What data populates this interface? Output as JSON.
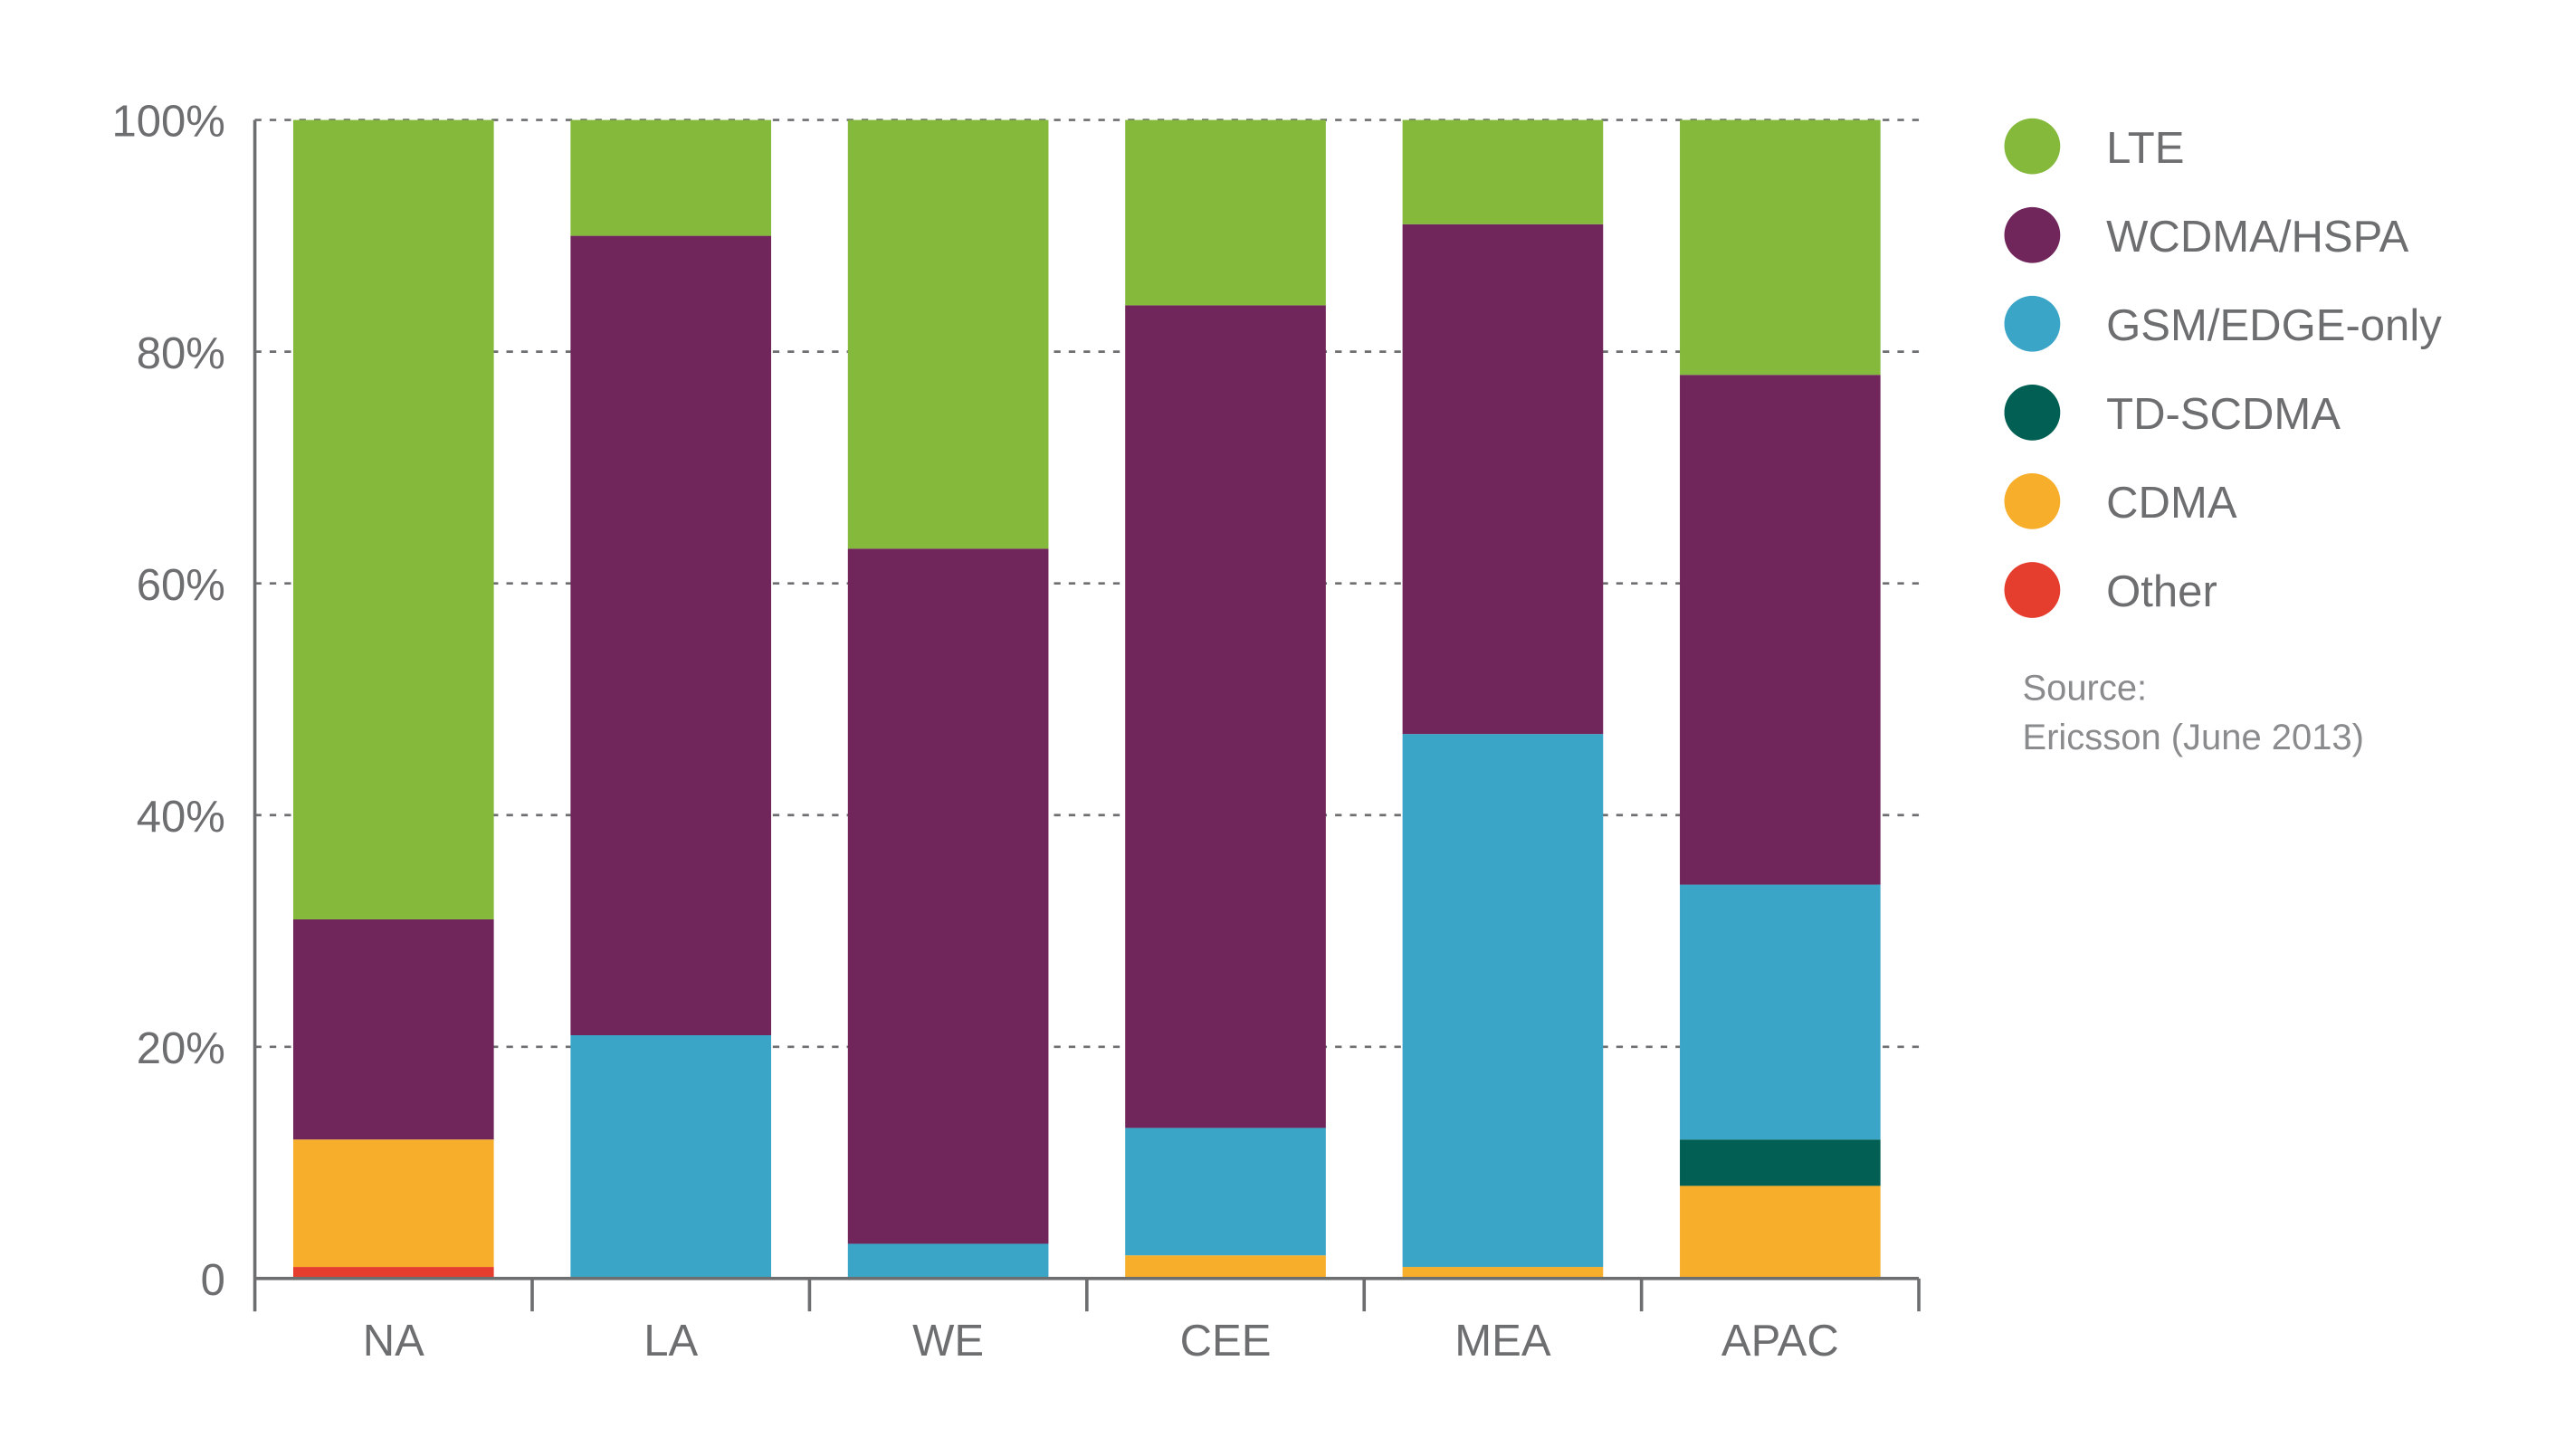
{
  "chart_data": {
    "type": "bar",
    "stacked": true,
    "title": "",
    "xlabel": "",
    "ylabel": "",
    "ylim": [
      0,
      100
    ],
    "yticks": [
      "0",
      "20%",
      "40%",
      "60%",
      "80%",
      "100%"
    ],
    "ytick_values": [
      0,
      20,
      40,
      60,
      80,
      100
    ],
    "grid": "horizontal dashed",
    "legend_position": "right",
    "categories": [
      "NA",
      "LA",
      "WE",
      "CEE",
      "MEA",
      "APAC"
    ],
    "series": [
      {
        "name": "Other",
        "color": "#e53d2e",
        "values": [
          1,
          0,
          0,
          0,
          0,
          0
        ]
      },
      {
        "name": "CDMA",
        "color": "#f7ae2b",
        "values": [
          11,
          0,
          0,
          2,
          1,
          8
        ]
      },
      {
        "name": "TD-SCDMA",
        "color": "#015f53",
        "values": [
          0,
          0,
          0,
          0,
          0,
          4
        ]
      },
      {
        "name": "GSM/EDGE-only",
        "color": "#3ba5c8",
        "values": [
          0,
          21,
          3,
          11,
          46,
          22
        ]
      },
      {
        "name": "WCDMA/HSPA",
        "color": "#70255b",
        "values": [
          19,
          69,
          60,
          71,
          44,
          44
        ]
      },
      {
        "name": "LTE",
        "color": "#84b93c",
        "values": [
          69,
          10,
          37,
          16,
          9,
          22
        ]
      }
    ],
    "legend_order": [
      "LTE",
      "WCDMA/HSPA",
      "GSM/EDGE-only",
      "TD-SCDMA",
      "CDMA",
      "Other"
    ],
    "source": {
      "line1": "Source:",
      "line2": "Ericsson (June 2013)"
    }
  }
}
